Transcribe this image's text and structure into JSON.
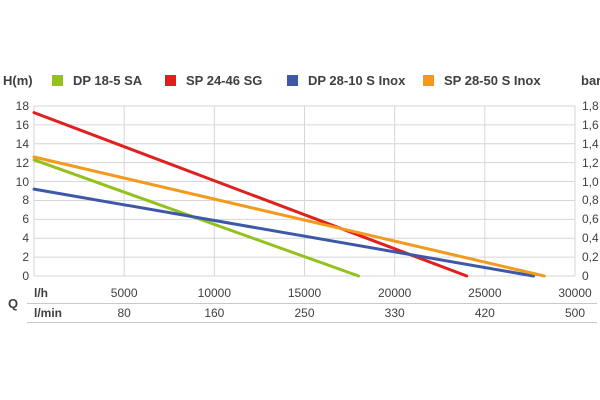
{
  "chart_data": {
    "type": "line",
    "title": "",
    "grid": true,
    "legend_position": "top",
    "y_axis_left": {
      "label": "H(m)",
      "range": [
        0,
        18
      ],
      "ticks": [
        "18",
        "16",
        "14",
        "12",
        "10",
        "8",
        "6",
        "4",
        "2",
        "0"
      ],
      "tick_values": [
        18,
        16,
        14,
        12,
        10,
        8,
        6,
        4,
        2,
        0
      ]
    },
    "y_axis_right": {
      "label": "bar",
      "range": [
        0,
        1.8
      ],
      "ticks": [
        "1,8",
        "1,6",
        "1,4",
        "1,2",
        "1,0",
        "0,8",
        "0,6",
        "0,4",
        "0,2",
        "0"
      ]
    },
    "x_axis": {
      "corner_label": "Q",
      "range_lh": [
        0,
        30000
      ],
      "primary_unit": "l/h",
      "primary_ticks": [
        "5000",
        "10000",
        "15000",
        "20000",
        "25000",
        "30000"
      ],
      "primary_tick_values": [
        5000,
        10000,
        15000,
        20000,
        25000,
        30000
      ],
      "secondary_unit": "l/min",
      "secondary_ticks": [
        "80",
        "160",
        "250",
        "330",
        "420",
        "500"
      ]
    },
    "series": [
      {
        "name": "DP 18-5 SA",
        "color": "#95c11f",
        "points_lh_m": [
          [
            0,
            12.3
          ],
          [
            18000,
            0
          ]
        ]
      },
      {
        "name": "SP 24-46 SG",
        "color": "#e0201e",
        "points_lh_m": [
          [
            0,
            17.3
          ],
          [
            24000,
            0
          ]
        ]
      },
      {
        "name": "DP 28-10 S Inox",
        "color": "#3d58a7",
        "points_lh_m": [
          [
            0,
            9.2
          ],
          [
            27700,
            0
          ]
        ]
      },
      {
        "name": "SP 28-50 S Inox",
        "color": "#f39a1e",
        "points_lh_m": [
          [
            0,
            12.6
          ],
          [
            28300,
            0
          ]
        ]
      }
    ],
    "grid_color": "#d6d6d6"
  }
}
